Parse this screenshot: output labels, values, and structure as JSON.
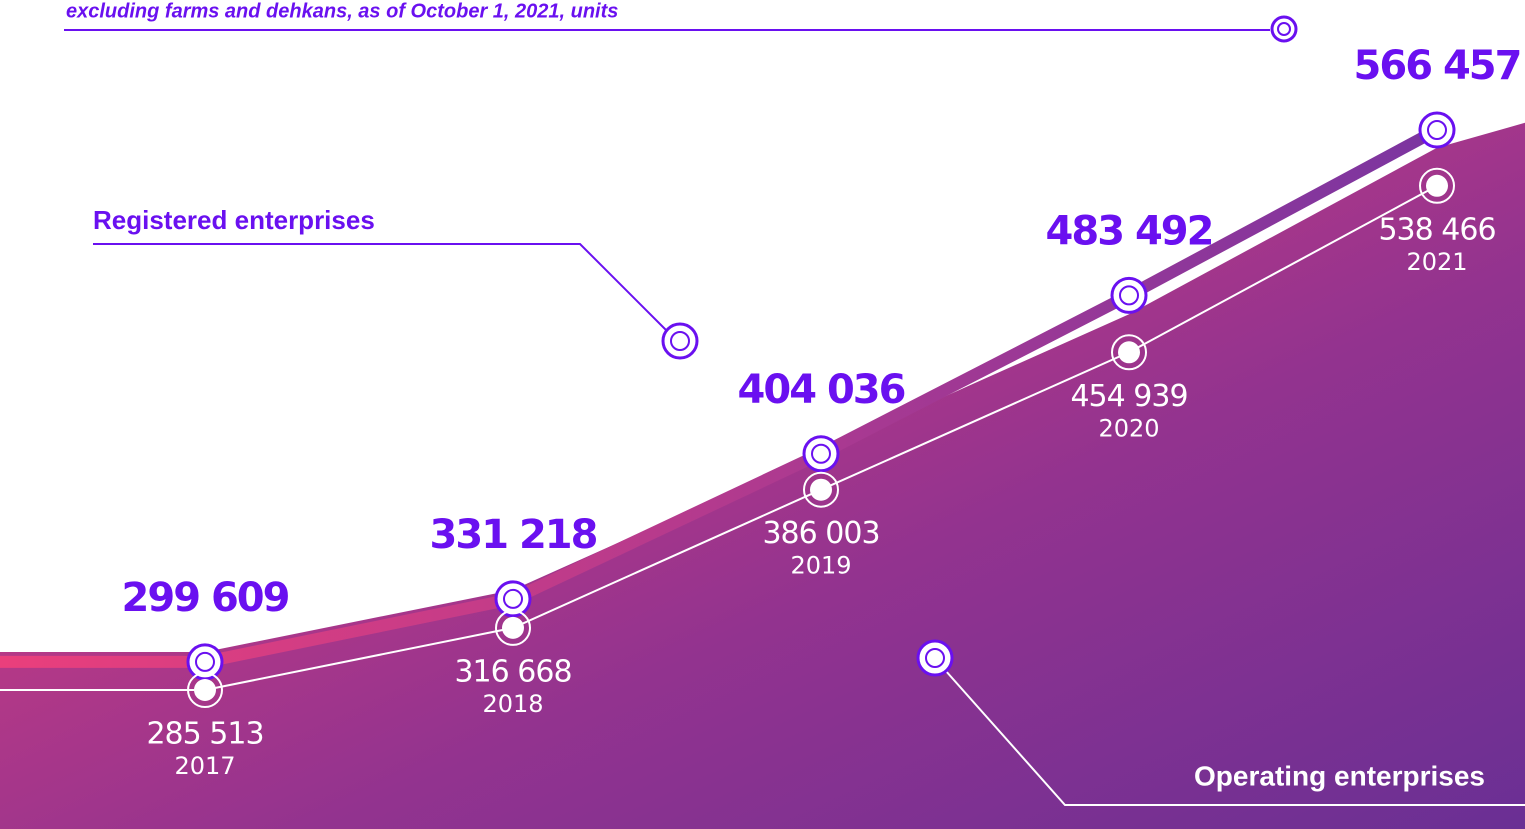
{
  "chart_data": {
    "type": "line",
    "subtitle": "excluding farms and dehkans, as of October 1, 2021, units",
    "categories": [
      "2017",
      "2018",
      "2019",
      "2020",
      "2021"
    ],
    "series": [
      {
        "name": "Registered enterprises",
        "color": "#7b35a0",
        "values": [
          299609,
          331218,
          404036,
          483492,
          566457
        ],
        "value_labels": [
          "299 609",
          "331 218",
          "404 036",
          "483 492",
          "566 457"
        ]
      },
      {
        "name": "Operating enterprises",
        "color": "#ffffff",
        "values": [
          285513,
          316668,
          386003,
          454939,
          538466
        ],
        "value_labels": [
          "285 513",
          "316 668",
          "386 003",
          "454 939",
          "538 466"
        ]
      }
    ]
  }
}
